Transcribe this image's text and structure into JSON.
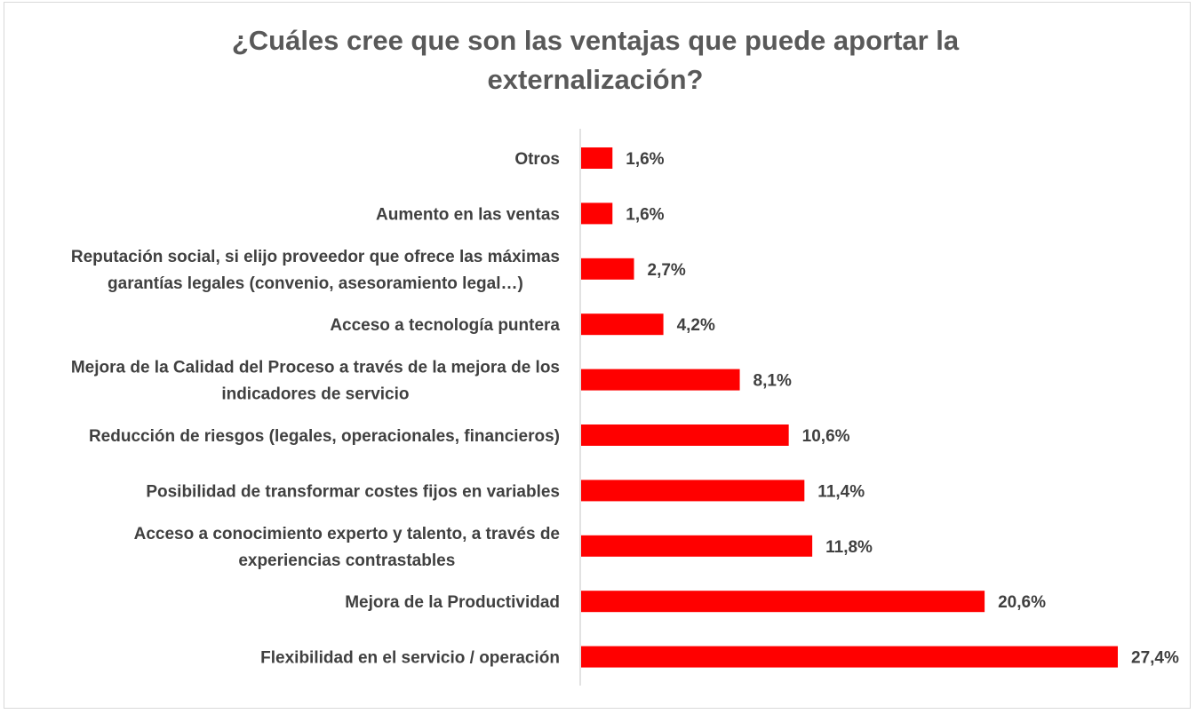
{
  "chart_data": {
    "type": "bar",
    "orientation": "horizontal",
    "title": "¿Cuáles cree que son las ventajas que puede aportar la externalización?",
    "title_lines": [
      "¿Cuáles cree que son las ventajas que puede aportar la",
      "externalización?"
    ],
    "categories": [
      "Otros",
      "Aumento en las ventas",
      "Reputación social, si elijo proveedor que ofrece las máximas garantías legales (convenio, asesoramiento legal…)",
      "Acceso a tecnología puntera",
      "Mejora de la Calidad del Proceso a través de la mejora de los indicadores de servicio",
      "Reducción de riesgos (legales, operacionales, financieros)",
      "Posibilidad de transformar costes fijos en variables",
      "Acceso a conocimiento experto y talento, a través de experiencias contrastables",
      "Mejora de la Productividad",
      "Flexibilidad en el servicio / operación"
    ],
    "category_lines": [
      [
        "Otros"
      ],
      [
        "Aumento en las ventas"
      ],
      [
        "Reputación social, si elijo proveedor que ofrece las máximas",
        "garantías legales (convenio, asesoramiento legal…)"
      ],
      [
        "Acceso a tecnología puntera"
      ],
      [
        "Mejora de la Calidad del Proceso a través de la mejora de los",
        "indicadores de servicio"
      ],
      [
        "Reducción de riesgos (legales, operacionales, financieros)"
      ],
      [
        "Posibilidad de transformar costes fijos en variables"
      ],
      [
        "Acceso a conocimiento experto y talento, a través de",
        "experiencias contrastables"
      ],
      [
        "Mejora de la Productividad"
      ],
      [
        "Flexibilidad en el servicio / operación"
      ]
    ],
    "values": [
      1.6,
      1.6,
      2.7,
      4.2,
      8.1,
      10.6,
      11.4,
      11.8,
      20.6,
      27.4
    ],
    "value_labels": [
      "1,6%",
      "1,6%",
      "2,7%",
      "4,2%",
      "8,1%",
      "10,6%",
      "11,4%",
      "11,8%",
      "20,6%",
      "27,4%"
    ],
    "xlim": [
      0,
      27.4
    ],
    "unit": "%",
    "grid": false,
    "legend": "none",
    "bar_color": "#ff0000",
    "axis_color": "#d9d9d9",
    "text_color": "#404040",
    "title_color": "#595959"
  }
}
